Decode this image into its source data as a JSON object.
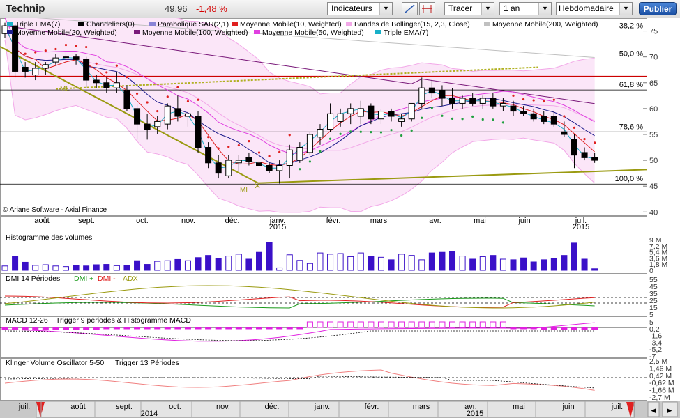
{
  "toolbar": {
    "ticker": "Technip",
    "price": "49,96",
    "change": "-1,48 %",
    "indicators_label": "Indicateurs",
    "draw_label": "Tracer",
    "period_label": "1 an",
    "frequency_label": "Hebdomadaire",
    "publish_label": "Publier",
    "icons": [
      "line-tool-icon",
      "horizontal-line-tool-icon"
    ]
  },
  "legend": [
    {
      "label": "Triple EMA(7)",
      "color": "#18b0c8"
    },
    {
      "label": "Chandeliers(0)",
      "color": "#000000"
    },
    {
      "label": "Parabolique SAR(2,1)",
      "color": "#8a84d6"
    },
    {
      "label": "Moyenne Mobile(10, Weighted)",
      "color": "#e02020"
    },
    {
      "label": "Bandes de Bollinger(15, 2,3, Close)",
      "color": "#f2a8e8"
    },
    {
      "label": "Moyenne Mobile(200, Weighted)",
      "color": "#c0c0c0"
    },
    {
      "label": "Moyenne Mobile(20, Weighted)",
      "color": "#1c1c8c"
    },
    {
      "label": "Moyenne Mobile(100, Weighted)",
      "color": "#7a1a7a"
    },
    {
      "label": "Moyenne Mobile(50, Weighted)",
      "color": "#e040e0"
    },
    {
      "label": "Triple EMA(7)",
      "color": "#18b0c8"
    }
  ],
  "copyright": "© Ariane Software - Axial Finance",
  "chart_data": [
    {
      "type": "candlestick",
      "title": "Technip",
      "y_ticks": [
        40,
        45,
        50,
        55,
        60,
        65,
        70,
        75
      ],
      "ylim": [
        39.5,
        77.5
      ],
      "x_labels": [
        "août",
        "sept.",
        "oct.",
        "nov.",
        "déc.",
        "janv.",
        "févr.",
        "mars",
        "avr.",
        "mai",
        "juin",
        "juil."
      ],
      "year_labels": [
        "2015",
        "2015"
      ],
      "fibonacci": [
        {
          "label": "38,2 %",
          "value": 75.0
        },
        {
          "label": "50,0 %",
          "value": 69.6
        },
        {
          "label": "61,8 %",
          "value": 63.6
        },
        {
          "label": "78,6 %",
          "value": 55.5
        },
        {
          "label": "100,0 %",
          "value": 45.4
        }
      ],
      "resistance": 66.2,
      "trendline_label": "ML",
      "candles": [
        {
          "o": 74.5,
          "h": 76.6,
          "l": 73.6,
          "c": 76.0
        },
        {
          "o": 76.0,
          "h": 76.3,
          "l": 66.0,
          "c": 67.2
        },
        {
          "o": 68.0,
          "h": 69.0,
          "l": 66.0,
          "c": 67.2
        },
        {
          "o": 66.5,
          "h": 69.0,
          "l": 65.5,
          "c": 67.8
        },
        {
          "o": 67.8,
          "h": 69.0,
          "l": 66.5,
          "c": 68.5
        },
        {
          "o": 69.0,
          "h": 70.5,
          "l": 68.5,
          "c": 69.8
        },
        {
          "o": 70.0,
          "h": 71.0,
          "l": 69.0,
          "c": 70.0
        },
        {
          "o": 70.0,
          "h": 70.5,
          "l": 68.5,
          "c": 69.5
        },
        {
          "o": 69.5,
          "h": 70.0,
          "l": 64.0,
          "c": 65.5
        },
        {
          "o": 65.5,
          "h": 66.5,
          "l": 64.0,
          "c": 65.0
        },
        {
          "o": 65.0,
          "h": 66.0,
          "l": 63.0,
          "c": 64.0
        },
        {
          "o": 64.0,
          "h": 67.0,
          "l": 63.0,
          "c": 65.0
        },
        {
          "o": 63.5,
          "h": 64.5,
          "l": 59.5,
          "c": 60.0
        },
        {
          "o": 60.0,
          "h": 61.0,
          "l": 54.0,
          "c": 57.0
        },
        {
          "o": 57.0,
          "h": 59.0,
          "l": 54.0,
          "c": 56.0
        },
        {
          "o": 56.5,
          "h": 58.5,
          "l": 55.0,
          "c": 57.5
        },
        {
          "o": 57.0,
          "h": 61.0,
          "l": 56.0,
          "c": 60.5
        },
        {
          "o": 60.0,
          "h": 62.5,
          "l": 57.5,
          "c": 58.5
        },
        {
          "o": 58.5,
          "h": 59.5,
          "l": 56.5,
          "c": 59.0
        },
        {
          "o": 58.5,
          "h": 59.5,
          "l": 51.5,
          "c": 52.5
        },
        {
          "o": 52.5,
          "h": 53.5,
          "l": 48.5,
          "c": 49.5
        },
        {
          "o": 49.5,
          "h": 51.0,
          "l": 46.5,
          "c": 47.5
        },
        {
          "o": 47.0,
          "h": 51.0,
          "l": 46.5,
          "c": 50.0
        },
        {
          "o": 49.5,
          "h": 51.0,
          "l": 48.0,
          "c": 50.0
        },
        {
          "o": 50.5,
          "h": 51.5,
          "l": 49.0,
          "c": 49.8
        },
        {
          "o": 49.5,
          "h": 50.5,
          "l": 48.5,
          "c": 49.0
        },
        {
          "o": 49.0,
          "h": 49.5,
          "l": 47.5,
          "c": 48.0
        },
        {
          "o": 48.0,
          "h": 50.0,
          "l": 45.5,
          "c": 49.0
        },
        {
          "o": 49.0,
          "h": 53.0,
          "l": 46.5,
          "c": 52.0
        },
        {
          "o": 50.0,
          "h": 53.5,
          "l": 49.5,
          "c": 52.5
        },
        {
          "o": 51.5,
          "h": 55.5,
          "l": 51.0,
          "c": 55.0
        },
        {
          "o": 54.5,
          "h": 57.0,
          "l": 53.0,
          "c": 56.0
        },
        {
          "o": 56.0,
          "h": 61.0,
          "l": 55.5,
          "c": 59.0
        },
        {
          "o": 57.5,
          "h": 60.0,
          "l": 56.5,
          "c": 59.0
        },
        {
          "o": 59.0,
          "h": 61.0,
          "l": 57.0,
          "c": 60.0
        },
        {
          "o": 58.5,
          "h": 61.5,
          "l": 57.0,
          "c": 60.0
        },
        {
          "o": 60.5,
          "h": 61.0,
          "l": 57.0,
          "c": 58.0
        },
        {
          "o": 58.0,
          "h": 60.0,
          "l": 57.0,
          "c": 59.5
        },
        {
          "o": 59.5,
          "h": 60.0,
          "l": 57.5,
          "c": 58.5
        },
        {
          "o": 57.5,
          "h": 59.0,
          "l": 56.5,
          "c": 58.0
        },
        {
          "o": 58.0,
          "h": 61.0,
          "l": 57.5,
          "c": 61.0
        },
        {
          "o": 61.0,
          "h": 66.0,
          "l": 60.0,
          "c": 64.0
        },
        {
          "o": 64.0,
          "h": 65.5,
          "l": 62.0,
          "c": 63.0
        },
        {
          "o": 63.5,
          "h": 64.5,
          "l": 60.5,
          "c": 62.0
        },
        {
          "o": 62.0,
          "h": 64.0,
          "l": 60.0,
          "c": 61.0
        },
        {
          "o": 61.0,
          "h": 62.5,
          "l": 60.0,
          "c": 62.0
        },
        {
          "o": 62.0,
          "h": 63.0,
          "l": 60.5,
          "c": 61.0
        },
        {
          "o": 61.0,
          "h": 62.5,
          "l": 60.0,
          "c": 62.0
        },
        {
          "o": 62.0,
          "h": 63.0,
          "l": 60.0,
          "c": 60.5
        },
        {
          "o": 60.5,
          "h": 62.0,
          "l": 59.5,
          "c": 61.0
        },
        {
          "o": 60.5,
          "h": 61.5,
          "l": 58.5,
          "c": 59.5
        },
        {
          "o": 59.5,
          "h": 60.5,
          "l": 58.5,
          "c": 59.0
        },
        {
          "o": 59.0,
          "h": 60.0,
          "l": 57.5,
          "c": 58.0
        },
        {
          "o": 58.5,
          "h": 59.5,
          "l": 57.0,
          "c": 57.5
        },
        {
          "o": 58.5,
          "h": 59.5,
          "l": 56.5,
          "c": 57.0
        },
        {
          "o": 55.5,
          "h": 57.5,
          "l": 54.5,
          "c": 55.0
        },
        {
          "o": 54.0,
          "h": 55.0,
          "l": 48.5,
          "c": 51.0
        },
        {
          "o": 51.5,
          "h": 52.5,
          "l": 50.0,
          "c": 50.5
        },
        {
          "o": 50.5,
          "h": 51.5,
          "l": 49.5,
          "c": 50.0
        }
      ]
    },
    {
      "type": "bar",
      "title": "Histogramme des volumes",
      "y_ticks": [
        "9 M",
        "7,2 M",
        "5,4 M",
        "3,6 M",
        "1,8 M",
        "0"
      ],
      "values": [
        1.4,
        4.6,
        2.6,
        1.6,
        1.8,
        1.4,
        1.2,
        1.6,
        1.4,
        1.8,
        1.9,
        1.5,
        1.6,
        3.1,
        1.9,
        2.9,
        3.1,
        3.5,
        3.1,
        4.1,
        4.8,
        3.8,
        4.6,
        5.2,
        3.6,
        5.8,
        9.0,
        0.8,
        5.0,
        3.2,
        2.2,
        5.6,
        5.2,
        5.4,
        4.4,
        5.6,
        4.6,
        4.2,
        3.4,
        5.2,
        4.8,
        3.4,
        5.6,
        5.8,
        6.0,
        4.6,
        3.6,
        4.4,
        4.8,
        3.6,
        3.4,
        4.0,
        2.7,
        3.4,
        3.8,
        4.8,
        8.8,
        3.6,
        0.5
      ]
    },
    {
      "type": "line",
      "title": "DMI 14 Périodes",
      "legend": [
        "DMI +",
        "DMI -",
        "ADX"
      ],
      "y_ticks": [
        55,
        45,
        35,
        25,
        15,
        5
      ]
    },
    {
      "type": "bar",
      "title": "MACD 12-26",
      "legend": [
        "Trigger 9 periodes & Histogramme MACD"
      ],
      "y_ticks": [
        5,
        0.2,
        -1.6,
        -3.4,
        -5.2,
        -7
      ]
    },
    {
      "type": "line",
      "title": "Klinger Volume Oscillator 5-50",
      "legend": [
        "Trigger 13 Périodes"
      ],
      "y_ticks": [
        "2,5 M",
        "1,46 M",
        "0,42 M",
        "-0,62 M",
        "-1,66 M",
        "-2,7 M"
      ]
    }
  ],
  "scroller": {
    "months": [
      "juil.",
      "août",
      "sept.",
      "oct.",
      "nov.",
      "déc.",
      "janv.",
      "févr.",
      "mars",
      "avr.",
      "mai",
      "juin",
      "juil."
    ],
    "years": [
      "2014",
      "2015"
    ]
  }
}
